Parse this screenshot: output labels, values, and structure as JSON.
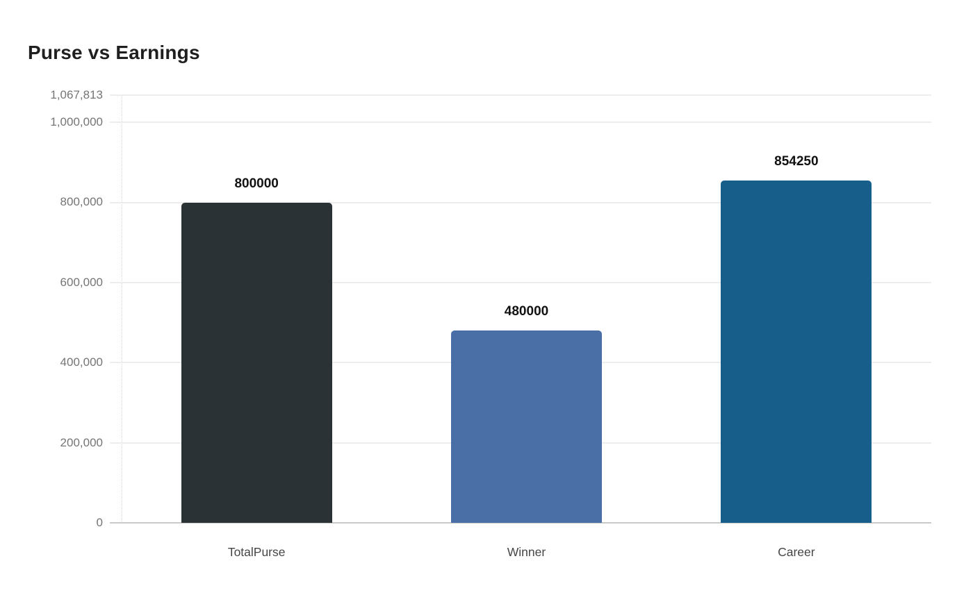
{
  "chart_data": {
    "type": "bar",
    "title": "Purse vs Earnings",
    "categories": [
      "TotalPurse",
      "Winner",
      "Career"
    ],
    "values": [
      800000,
      480000,
      854250
    ],
    "value_labels": [
      "800000",
      "480000",
      "854250"
    ],
    "bar_colors": [
      "#2b3236",
      "#4a6fa6",
      "#175f8a"
    ],
    "xlabel": "",
    "ylabel": "",
    "ylim": [
      0,
      1067813
    ],
    "yticks": [
      {
        "value": 0,
        "label": "0"
      },
      {
        "value": 200000,
        "label": "200,000"
      },
      {
        "value": 400000,
        "label": "400,000"
      },
      {
        "value": 600000,
        "label": "600,000"
      },
      {
        "value": 800000,
        "label": "800,000"
      },
      {
        "value": 1000000,
        "label": "1,000,000"
      },
      {
        "value": 1067813,
        "label": "1,067,813"
      }
    ],
    "grid": true,
    "legend": "none"
  },
  "style": {
    "title_color": "#1f1f1f",
    "ytick_color": "#757575",
    "xtick_color": "#454545",
    "value_label_color": "#121212",
    "gridline_color": "#ededed",
    "baseline_color": "#c9c9c9",
    "background": "#ffffff"
  }
}
